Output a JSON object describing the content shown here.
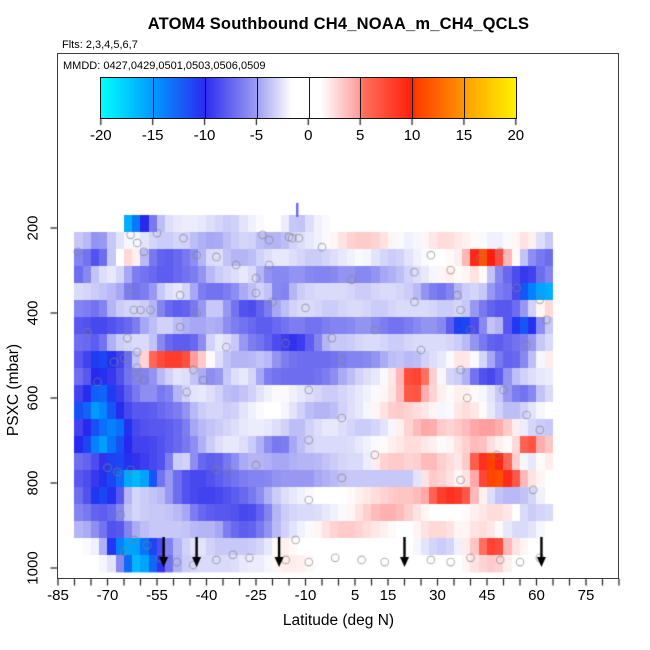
{
  "chart_data": {
    "type": "heatmap",
    "title": "ATOM4 Southbound CH4_NOAA_m_CH4_QCLS",
    "subtitle_flights": "Flts: 2,3,4,5,6,7",
    "annotation_mmdd": "MMDD: 0427,0429,0501,0503,0506,0509",
    "xlabel": "Latitude (deg N)",
    "ylabel": "PSXC (mbar)",
    "x_range": [
      -85,
      85
    ],
    "x_tick_interval": 5,
    "x_tick_labels": [
      -85,
      -70,
      -55,
      -40,
      -25,
      -10,
      5,
      15,
      30,
      45,
      60,
      75
    ],
    "y_ticks": [
      200,
      400,
      600,
      800,
      1000
    ],
    "y_range_mbar": [
      170,
      1016
    ],
    "colorbar": {
      "range": [
        -20,
        20
      ],
      "ticks": [
        -20,
        -15,
        -10,
        -5,
        0,
        5,
        10,
        15,
        20
      ],
      "gradient_stops": [
        {
          "pct": 0,
          "c": "#00ffff"
        },
        {
          "pct": 12.5,
          "c": "#009aff"
        },
        {
          "pct": 25,
          "c": "#2b2bf0"
        },
        {
          "pct": 37.5,
          "c": "#9d9df2"
        },
        {
          "pct": 46,
          "c": "#ffffff"
        },
        {
          "pct": 53,
          "c": "#ffffff"
        },
        {
          "pct": 62,
          "c": "#ffa0a0"
        },
        {
          "pct": 63,
          "c": "#ff7160"
        },
        {
          "pct": 75,
          "c": "#ff1e08"
        },
        {
          "pct": 76,
          "c": "#ff3c00"
        },
        {
          "pct": 87.5,
          "c": "#ff9600"
        },
        {
          "pct": 88.5,
          "c": "#ffa500"
        },
        {
          "pct": 100,
          "c": "#fff200"
        }
      ]
    },
    "grid": {
      "lat_bin_start": -85,
      "lat_bin_width": 5,
      "n_cols": 34,
      "pressure_top_mbar": 170,
      "row_height_mbar": 40,
      "values": [
        [
          null,
          null,
          null,
          null,
          -16,
          -8,
          -2,
          -1,
          -1,
          -2,
          -3,
          -1,
          0,
          0,
          -4,
          -1,
          0,
          0,
          0,
          0,
          null,
          null,
          null,
          null,
          null,
          null,
          null,
          null,
          null,
          null,
          null,
          null,
          null,
          null
        ],
        [
          null,
          -3,
          -6,
          -2,
          0,
          -2,
          -3,
          -2,
          -4,
          -5,
          -3,
          -2,
          -4,
          -4,
          -2,
          -1,
          0,
          2,
          3,
          2,
          0,
          -1,
          1,
          2,
          1,
          0,
          -1,
          0,
          2,
          -3,
          null,
          null,
          null,
          null
        ],
        [
          null,
          -6,
          -9,
          -1,
          3,
          -6,
          -8,
          -7,
          -5,
          -1,
          -4,
          -4,
          -2,
          -1,
          -2,
          -3,
          -2,
          -1,
          0,
          -2,
          -3,
          -1,
          0,
          0,
          1,
          12,
          9,
          2,
          -5,
          -7,
          null,
          null,
          null,
          null
        ],
        [
          null,
          -7,
          -2,
          -1,
          -6,
          -7,
          -8,
          -7,
          -6,
          -3,
          -2,
          -1,
          -5,
          -6,
          -5,
          -6,
          -6,
          -5,
          -6,
          -5,
          -4,
          -2,
          -1,
          1,
          0,
          2,
          -5,
          -8,
          -10,
          -6,
          null,
          null,
          null,
          null
        ],
        [
          null,
          -2,
          -3,
          -4,
          -7,
          -6,
          -2,
          -1,
          -6,
          -7,
          -6,
          -4,
          -2,
          -7,
          -3,
          -2,
          -2,
          -2,
          -3,
          -2,
          -2,
          -3,
          -6,
          -7,
          -3,
          -2,
          -6,
          -7,
          -14,
          -16,
          null,
          null,
          null,
          null
        ],
        [
          null,
          -6,
          -7,
          -3,
          -2,
          -3,
          -7,
          -8,
          -6,
          -2,
          -6,
          -9,
          -7,
          -4,
          -2,
          -2,
          -3,
          -2,
          -2,
          -3,
          -2,
          -2,
          -2,
          -3,
          -2,
          -6,
          -8,
          -8,
          -4,
          2,
          null,
          null,
          null,
          null
        ],
        [
          null,
          -8,
          -9,
          -8,
          -7,
          -4,
          -2,
          -4,
          -5,
          -4,
          -6,
          -7,
          -8,
          -7,
          -6,
          -7,
          -6,
          -6,
          -5,
          -6,
          -7,
          -6,
          -5,
          -6,
          -13,
          -7,
          -2,
          -10,
          -13,
          -3,
          null,
          null,
          null,
          null
        ],
        [
          null,
          -7,
          -8,
          -3,
          -2,
          -2,
          -7,
          -8,
          -7,
          -1,
          -2,
          -6,
          -7,
          -9,
          -10,
          -7,
          -3,
          -3,
          -2,
          -2,
          -3,
          -2,
          -2,
          -2,
          -3,
          -6,
          -8,
          -7,
          -6,
          -2,
          null,
          null,
          null,
          null
        ],
        [
          null,
          -8,
          -12,
          -10,
          -6,
          5,
          8,
          8,
          4,
          -1,
          -4,
          -4,
          -3,
          -6,
          -7,
          -7,
          -7,
          -6,
          -6,
          -5,
          -3,
          -4,
          -2,
          -1,
          2,
          -1,
          -6,
          -8,
          -5,
          1,
          null,
          null,
          null,
          null
        ],
        [
          null,
          -7,
          -11,
          -9,
          -6,
          -6,
          -3,
          -1,
          -4,
          -6,
          -2,
          -1,
          -6,
          -7,
          -7,
          -7,
          -6,
          -4,
          -2,
          -1,
          2,
          9,
          4,
          -2,
          -3,
          -8,
          -9,
          -4,
          -2,
          -1,
          null,
          null,
          null,
          null
        ],
        [
          null,
          -9,
          -14,
          -10,
          -7,
          -5,
          -7,
          -3,
          -1,
          -2,
          -4,
          -3,
          -1,
          0,
          -1,
          -2,
          -3,
          -2,
          -1,
          0,
          2,
          8,
          3,
          0,
          1,
          0,
          -2,
          -6,
          -7,
          -2,
          null,
          null,
          null,
          null
        ],
        [
          null,
          -12,
          -16,
          -11,
          -8,
          -8,
          -7,
          -6,
          -3,
          -2,
          -3,
          -1,
          0,
          0,
          -2,
          -4,
          -4,
          -2,
          -1,
          1,
          3,
          2,
          1,
          -1,
          2,
          1,
          -2,
          -4,
          -2,
          0,
          null,
          null,
          null,
          null
        ],
        [
          null,
          -9,
          -13,
          -15,
          -9,
          -8,
          -8,
          -7,
          -4,
          -3,
          -2,
          -1,
          -1,
          -2,
          -4,
          -2,
          -1,
          -2,
          -3,
          -2,
          0,
          3,
          5,
          2,
          3,
          5,
          5,
          2,
          -2,
          -3,
          null,
          null,
          null,
          null
        ],
        [
          null,
          -10,
          -16,
          -13,
          -9,
          -9,
          -8,
          -7,
          -5,
          -2,
          -1,
          -2,
          -5,
          -7,
          -4,
          -2,
          -2,
          -2,
          -1,
          0,
          1,
          2,
          1,
          0,
          2,
          4,
          1,
          0,
          8,
          3,
          null,
          null,
          null,
          null
        ],
        [
          null,
          -7,
          -9,
          -12,
          -10,
          -9,
          -8,
          -1,
          -7,
          -8,
          -6,
          -4,
          -4,
          -5,
          -4,
          -4,
          -3,
          -2,
          -2,
          2,
          3,
          2,
          4,
          2,
          1,
          8,
          11,
          4,
          -2,
          1,
          null,
          null,
          null,
          null
        ],
        [
          null,
          -8,
          -10,
          -12,
          -17,
          -15,
          -4,
          -8,
          -9,
          -8,
          -7,
          -6,
          -6,
          -5,
          -5,
          -5,
          -4,
          -3,
          -3,
          -3,
          -3,
          -3,
          3,
          2,
          0,
          6,
          12,
          8,
          2,
          0,
          null,
          null,
          null,
          null
        ],
        [
          null,
          -7,
          -12,
          -10,
          -2,
          -3,
          -4,
          -8,
          -9,
          -9,
          -8,
          -7,
          -5,
          -2,
          -1,
          0,
          0,
          0,
          1,
          2,
          3,
          3,
          5,
          9,
          8,
          2,
          -3,
          -4,
          -3,
          0,
          null,
          null,
          null,
          null
        ],
        [
          null,
          -6,
          -8,
          -7,
          -2,
          -3,
          -3,
          -4,
          -7,
          -8,
          -8,
          -9,
          -7,
          -3,
          -2,
          -2,
          -1,
          0,
          2,
          4,
          4,
          2,
          0,
          0,
          0,
          1,
          2,
          1,
          -3,
          -2,
          null,
          null,
          null,
          null
        ],
        [
          null,
          -4,
          -6,
          -9,
          -5,
          -3,
          -3,
          -3,
          -4,
          -4,
          -7,
          -8,
          -6,
          -3,
          -1,
          0,
          2,
          3,
          2,
          1,
          0,
          0,
          2,
          2,
          0,
          2,
          1,
          -2,
          -2,
          0,
          null,
          null,
          null,
          null
        ],
        [
          null,
          0,
          -1,
          -14,
          -16,
          -13,
          -7,
          -3,
          -1,
          -3,
          -3,
          -3,
          -2,
          1,
          0,
          0,
          0,
          0,
          0,
          0,
          0,
          0,
          -2,
          -3,
          0,
          4,
          9,
          2,
          0,
          0,
          null,
          null,
          null,
          null
        ],
        [
          null,
          null,
          0,
          -2,
          -17,
          -15,
          -8,
          -3,
          -2,
          -2,
          -2,
          -1,
          -1,
          1,
          1,
          0,
          0,
          0,
          0,
          0,
          0,
          0,
          0,
          0,
          0,
          2,
          3,
          0,
          0,
          null,
          null,
          null,
          null,
          null
        ]
      ]
    },
    "arrows_lat": [
      -53,
      -43,
      -18,
      20,
      61.5
    ],
    "spike": {
      "lat": -12.5,
      "p_top": 140,
      "p_bottom": 205
    },
    "sample_points_lat_p": [
      [
        -79,
        256
      ],
      [
        -63,
        216
      ],
      [
        -61,
        235
      ],
      [
        -59,
        256
      ],
      [
        -55,
        212
      ],
      [
        -47,
        224
      ],
      [
        -63,
        346
      ],
      [
        -48,
        358
      ],
      [
        -62,
        393
      ],
      [
        -60,
        393
      ],
      [
        -57,
        393
      ],
      [
        -76,
        445
      ],
      [
        -64,
        459
      ],
      [
        -48,
        433
      ],
      [
        -43,
        400
      ],
      [
        -61,
        492
      ],
      [
        -68,
        515
      ],
      [
        -65,
        506
      ],
      [
        -61,
        529
      ],
      [
        -73,
        562
      ],
      [
        -61,
        553
      ],
      [
        -59,
        558
      ],
      [
        -46,
        586
      ],
      [
        -44,
        534
      ],
      [
        -41,
        558
      ],
      [
        -15,
        221
      ],
      [
        -14,
        224
      ],
      [
        -12,
        224
      ],
      [
        -5,
        245
      ],
      [
        -43,
        264
      ],
      [
        -37,
        268
      ],
      [
        -31,
        287
      ],
      [
        -25,
        318
      ],
      [
        -20,
        374
      ],
      [
        -10,
        388
      ],
      [
        -25,
        353
      ],
      [
        -16,
        471
      ],
      [
        -34,
        480
      ],
      [
        -2,
        459
      ],
      [
        -23,
        216
      ],
      [
        -21,
        228
      ],
      [
        4,
        322
      ],
      [
        -21,
        287
      ],
      [
        28,
        264
      ],
      [
        23,
        304
      ],
      [
        34,
        299
      ],
      [
        43,
        271
      ],
      [
        49,
        256
      ],
      [
        36,
        358
      ],
      [
        37,
        393
      ],
      [
        54,
        341
      ],
      [
        61,
        369
      ],
      [
        40,
        440
      ],
      [
        57,
        475
      ],
      [
        37,
        534
      ],
      [
        25,
        487
      ],
      [
        50,
        581
      ],
      [
        39,
        600
      ],
      [
        57,
        640
      ],
      [
        61,
        675
      ],
      [
        48,
        734
      ],
      [
        37,
        793
      ],
      [
        23,
        374
      ],
      [
        11,
        440
      ],
      [
        1,
        511
      ],
      [
        -9,
        581
      ],
      [
        1,
        647
      ],
      [
        -9,
        699
      ],
      [
        11,
        734
      ],
      [
        1,
        788
      ],
      [
        -9,
        840
      ],
      [
        -25,
        758
      ],
      [
        -33,
        774
      ],
      [
        -37,
        769
      ],
      [
        -66,
        875
      ],
      [
        -62,
        934
      ],
      [
        -58,
        946
      ],
      [
        -65,
        962
      ],
      [
        -54,
        976
      ],
      [
        -49,
        986
      ],
      [
        -44,
        993
      ],
      [
        -37,
        981
      ],
      [
        -32,
        969
      ],
      [
        -27,
        976
      ],
      [
        -16,
        981
      ],
      [
        -9,
        986
      ],
      [
        -1,
        976
      ],
      [
        7,
        981
      ],
      [
        14,
        986
      ],
      [
        28,
        981
      ],
      [
        34,
        986
      ],
      [
        40,
        976
      ],
      [
        49,
        981
      ],
      [
        55,
        986
      ],
      [
        61,
        976
      ],
      [
        -13,
        934
      ],
      [
        59,
        816
      ],
      [
        63,
        416
      ],
      [
        -63,
        769
      ],
      [
        -70,
        764
      ],
      [
        -67,
        774
      ]
    ]
  }
}
